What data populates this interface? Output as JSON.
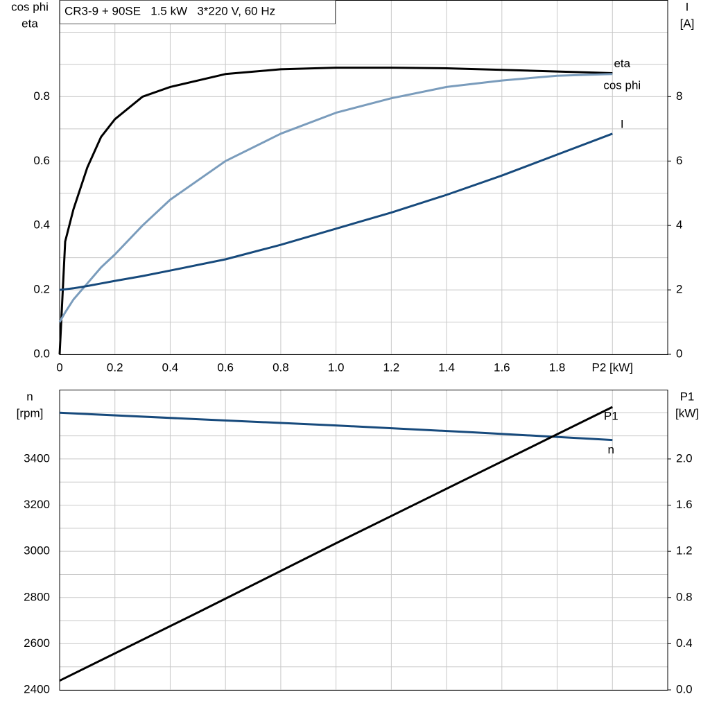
{
  "chart_data": [
    {
      "type": "line",
      "title": "CR3-9 + 90SE   1.5 kW   3*220 V, 60 Hz",
      "y_label": [
        "cos phi",
        "eta"
      ],
      "y2_label": [
        "I",
        "[A]"
      ],
      "x": [
        0,
        0.02,
        0.05,
        0.1,
        0.15,
        0.2,
        0.3,
        0.4,
        0.6,
        0.8,
        1.0,
        1.2,
        1.4,
        1.6,
        1.8,
        2.0
      ],
      "xlim": [
        0,
        2.2
      ],
      "xticks": [
        {
          "value": 0,
          "label": "0"
        },
        0.2,
        0.4,
        0.6,
        0.8,
        {
          "value": 1.0,
          "label": "1.0"
        },
        1.2,
        1.4,
        1.6,
        1.8,
        {
          "value": 2.0,
          "label": "P2 [kW]"
        }
      ],
      "ylim": [
        0,
        1.1
      ],
      "yticks": [
        {
          "value": 0,
          "label": "0.0"
        },
        0.2,
        0.4,
        0.6,
        0.8
      ],
      "yminor": [
        0.1,
        0.3,
        0.5,
        0.7,
        0.9,
        1.0
      ],
      "y2lim": [
        0,
        11
      ],
      "y2ticks": [
        0,
        2,
        4,
        6,
        8
      ],
      "grid": true,
      "series": [
        {
          "name": "eta",
          "color": "#000000",
          "values": [
            0,
            0.35,
            0.45,
            0.58,
            0.675,
            0.73,
            0.8,
            0.83,
            0.87,
            0.885,
            0.89,
            0.89,
            0.888,
            0.883,
            0.878,
            0.873
          ]
        },
        {
          "name": "cos phi",
          "color": "#7a9cbc",
          "values": [
            0.1,
            0.13,
            0.17,
            0.22,
            0.27,
            0.31,
            0.4,
            0.48,
            0.6,
            0.685,
            0.75,
            0.795,
            0.83,
            0.85,
            0.865,
            0.87
          ]
        },
        {
          "name": "I",
          "color": "#174a7c",
          "axis": "y2",
          "values": [
            2.0,
            2.02,
            2.05,
            2.12,
            2.2,
            2.28,
            2.43,
            2.6,
            2.95,
            3.4,
            3.9,
            4.4,
            4.95,
            5.55,
            6.2,
            6.85
          ]
        }
      ]
    },
    {
      "type": "line",
      "y_label": [
        "n",
        "[rpm]"
      ],
      "y2_label": [
        "P1",
        "[kW]"
      ],
      "x": [
        0,
        0.5,
        1.0,
        1.5,
        2.0
      ],
      "xlim": [
        0,
        2.2
      ],
      "xgrid": [
        0,
        0.2,
        0.4,
        0.6,
        0.8,
        1.0,
        1.2,
        1.4,
        1.6,
        1.8,
        2.0
      ],
      "ylim": [
        2400,
        3700
      ],
      "yticks": [
        2400,
        2600,
        2800,
        3000,
        3200,
        3400
      ],
      "yminor": [
        2500,
        2700,
        2900,
        3100,
        3300,
        3500,
        3600
      ],
      "y2lim": [
        0,
        2.6
      ],
      "y2ticks": [
        {
          "value": 0,
          "label": "0.0"
        },
        0.4,
        0.8,
        1.2,
        1.6,
        {
          "value": 2.0,
          "label": "2.0"
        }
      ],
      "grid": true,
      "series": [
        {
          "name": "n",
          "color": "#174a7c",
          "values": [
            3600,
            3572,
            3545,
            3515,
            3482
          ]
        },
        {
          "name": "P1",
          "color": "#000000",
          "axis": "y2",
          "values": [
            0.08,
            0.67,
            1.27,
            1.86,
            2.45
          ]
        }
      ]
    }
  ]
}
